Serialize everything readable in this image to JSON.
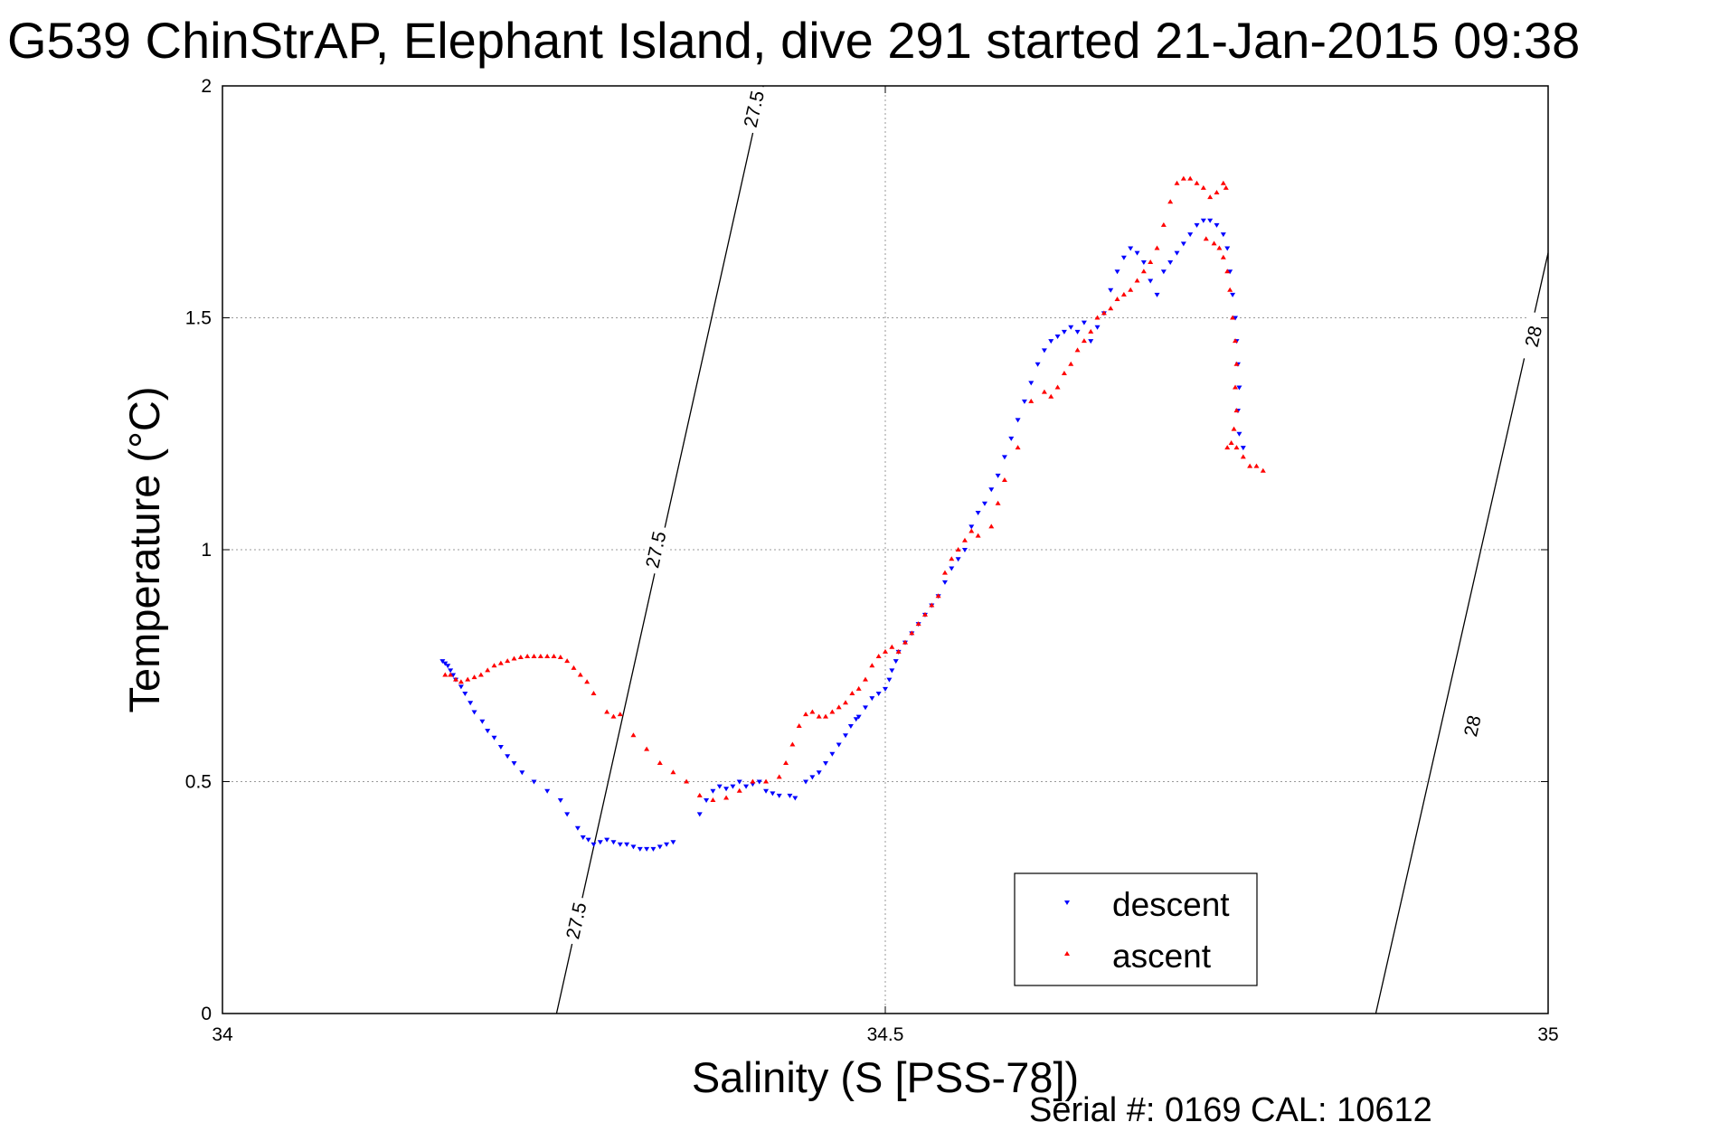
{
  "chart_data": {
    "type": "scatter",
    "title": "G539 ChinStrAP, Elephant Island, dive 291 started 21-Jan-2015 09:38",
    "xlabel": "Salinity (S [PSS-78])",
    "ylabel": "Temperature (°C)",
    "footer": "Serial #: 0169 CAL: 10612",
    "xlim": [
      34,
      35
    ],
    "ylim": [
      0,
      2
    ],
    "xticks": [
      34,
      34.5,
      35
    ],
    "xtick_labels": [
      "34",
      "34.5",
      "35"
    ],
    "yticks": [
      0,
      0.5,
      1,
      1.5,
      2
    ],
    "ytick_labels": [
      "0",
      "0.5",
      "1",
      "1.5",
      "2"
    ],
    "grid": true,
    "legend": {
      "position": "bottom-right",
      "entries": [
        "descent",
        "ascent"
      ]
    },
    "isopycnals": [
      {
        "label": "27.5",
        "points": [
          [
            34.252,
            0
          ],
          [
            34.408,
            2
          ]
        ],
        "label_positions": [
          [
            34.267,
            0.2
          ],
          [
            34.327,
            1.0
          ],
          [
            34.401,
            1.95
          ]
        ]
      },
      {
        "label": "28",
        "points": [
          [
            34.87,
            0
          ],
          [
            35.0,
            1.64
          ]
        ],
        "label_positions": [
          [
            34.943,
            0.62
          ],
          [
            34.989,
            1.46
          ]
        ]
      }
    ],
    "series": [
      {
        "name": "descent",
        "color": "#0000ff",
        "marker": "triangle-down",
        "points": [
          [
            34.166,
            0.76
          ],
          [
            34.168,
            0.755
          ],
          [
            34.17,
            0.75
          ],
          [
            34.172,
            0.74
          ],
          [
            34.174,
            0.73
          ],
          [
            34.176,
            0.72
          ],
          [
            34.18,
            0.705
          ],
          [
            34.183,
            0.69
          ],
          [
            34.187,
            0.67
          ],
          [
            34.19,
            0.65
          ],
          [
            34.196,
            0.63
          ],
          [
            34.2,
            0.61
          ],
          [
            34.205,
            0.595
          ],
          [
            34.21,
            0.575
          ],
          [
            34.215,
            0.555
          ],
          [
            34.22,
            0.54
          ],
          [
            34.226,
            0.52
          ],
          [
            34.235,
            0.5
          ],
          [
            34.245,
            0.48
          ],
          [
            34.255,
            0.46
          ],
          [
            34.26,
            0.43
          ],
          [
            34.268,
            0.4
          ],
          [
            34.272,
            0.38
          ],
          [
            34.276,
            0.375
          ],
          [
            34.28,
            0.365
          ],
          [
            34.285,
            0.37
          ],
          [
            34.29,
            0.375
          ],
          [
            34.295,
            0.37
          ],
          [
            34.3,
            0.365
          ],
          [
            34.305,
            0.365
          ],
          [
            34.31,
            0.36
          ],
          [
            34.315,
            0.355
          ],
          [
            34.32,
            0.355
          ],
          [
            34.325,
            0.355
          ],
          [
            34.33,
            0.36
          ],
          [
            34.335,
            0.365
          ],
          [
            34.34,
            0.37
          ],
          [
            34.36,
            0.43
          ],
          [
            34.365,
            0.46
          ],
          [
            34.37,
            0.48
          ],
          [
            34.375,
            0.49
          ],
          [
            34.38,
            0.485
          ],
          [
            34.385,
            0.49
          ],
          [
            34.39,
            0.5
          ],
          [
            34.395,
            0.49
          ],
          [
            34.4,
            0.495
          ],
          [
            34.405,
            0.5
          ],
          [
            34.41,
            0.48
          ],
          [
            34.415,
            0.475
          ],
          [
            34.42,
            0.47
          ],
          [
            34.428,
            0.47
          ],
          [
            34.432,
            0.465
          ],
          [
            34.44,
            0.5
          ],
          [
            34.445,
            0.51
          ],
          [
            34.45,
            0.52
          ],
          [
            34.455,
            0.54
          ],
          [
            34.46,
            0.56
          ],
          [
            34.465,
            0.58
          ],
          [
            34.47,
            0.6
          ],
          [
            34.474,
            0.62
          ],
          [
            34.478,
            0.635
          ],
          [
            34.48,
            0.64
          ],
          [
            34.485,
            0.66
          ],
          [
            34.49,
            0.68
          ],
          [
            34.495,
            0.69
          ],
          [
            34.5,
            0.7
          ],
          [
            34.503,
            0.72
          ],
          [
            34.505,
            0.74
          ],
          [
            34.508,
            0.76
          ],
          [
            34.51,
            0.78
          ],
          [
            34.515,
            0.8
          ],
          [
            34.52,
            0.82
          ],
          [
            34.525,
            0.84
          ],
          [
            34.53,
            0.86
          ],
          [
            34.535,
            0.88
          ],
          [
            34.54,
            0.9
          ],
          [
            34.545,
            0.93
          ],
          [
            34.55,
            0.96
          ],
          [
            34.555,
            0.98
          ],
          [
            34.56,
            1.0
          ],
          [
            34.565,
            1.05
          ],
          [
            34.57,
            1.08
          ],
          [
            34.575,
            1.1
          ],
          [
            34.58,
            1.13
          ],
          [
            34.585,
            1.16
          ],
          [
            34.59,
            1.2
          ],
          [
            34.595,
            1.24
          ],
          [
            34.6,
            1.28
          ],
          [
            34.605,
            1.32
          ],
          [
            34.61,
            1.36
          ],
          [
            34.615,
            1.4
          ],
          [
            34.62,
            1.43
          ],
          [
            34.625,
            1.45
          ],
          [
            34.63,
            1.46
          ],
          [
            34.635,
            1.47
          ],
          [
            34.64,
            1.48
          ],
          [
            34.645,
            1.47
          ],
          [
            34.65,
            1.49
          ],
          [
            34.655,
            1.45
          ],
          [
            34.66,
            1.48
          ],
          [
            34.665,
            1.51
          ],
          [
            34.67,
            1.56
          ],
          [
            34.675,
            1.6
          ],
          [
            34.68,
            1.63
          ],
          [
            34.685,
            1.65
          ],
          [
            34.69,
            1.64
          ],
          [
            34.695,
            1.62
          ],
          [
            34.7,
            1.58
          ],
          [
            34.705,
            1.55
          ],
          [
            34.71,
            1.6
          ],
          [
            34.715,
            1.62
          ],
          [
            34.72,
            1.64
          ],
          [
            34.725,
            1.66
          ],
          [
            34.73,
            1.68
          ],
          [
            34.735,
            1.7
          ],
          [
            34.74,
            1.71
          ],
          [
            34.745,
            1.71
          ],
          [
            34.75,
            1.7
          ],
          [
            34.755,
            1.68
          ],
          [
            34.758,
            1.65
          ],
          [
            34.76,
            1.6
          ],
          [
            34.762,
            1.55
          ],
          [
            34.764,
            1.5
          ],
          [
            34.765,
            1.45
          ],
          [
            34.766,
            1.4
          ],
          [
            34.767,
            1.35
          ],
          [
            34.766,
            1.3
          ],
          [
            34.767,
            1.25
          ],
          [
            34.77,
            1.22
          ]
        ]
      },
      {
        "name": "ascent",
        "color": "#ff0000",
        "marker": "triangle-up",
        "points": [
          [
            34.168,
            0.73
          ],
          [
            34.172,
            0.73
          ],
          [
            34.176,
            0.72
          ],
          [
            34.18,
            0.715
          ],
          [
            34.185,
            0.72
          ],
          [
            34.19,
            0.725
          ],
          [
            34.195,
            0.73
          ],
          [
            34.2,
            0.74
          ],
          [
            34.205,
            0.75
          ],
          [
            34.21,
            0.755
          ],
          [
            34.215,
            0.76
          ],
          [
            34.22,
            0.765
          ],
          [
            34.225,
            0.768
          ],
          [
            34.23,
            0.77
          ],
          [
            34.235,
            0.77
          ],
          [
            34.24,
            0.77
          ],
          [
            34.245,
            0.77
          ],
          [
            34.25,
            0.77
          ],
          [
            34.255,
            0.768
          ],
          [
            34.26,
            0.76
          ],
          [
            34.265,
            0.745
          ],
          [
            34.27,
            0.73
          ],
          [
            34.275,
            0.715
          ],
          [
            34.28,
            0.69
          ],
          [
            34.29,
            0.65
          ],
          [
            34.295,
            0.64
          ],
          [
            34.3,
            0.645
          ],
          [
            34.31,
            0.6
          ],
          [
            34.32,
            0.57
          ],
          [
            34.33,
            0.54
          ],
          [
            34.34,
            0.52
          ],
          [
            34.35,
            0.5
          ],
          [
            34.36,
            0.47
          ],
          [
            34.37,
            0.46
          ],
          [
            34.38,
            0.465
          ],
          [
            34.39,
            0.48
          ],
          [
            34.4,
            0.5
          ],
          [
            34.41,
            0.5
          ],
          [
            34.42,
            0.51
          ],
          [
            34.425,
            0.54
          ],
          [
            34.43,
            0.58
          ],
          [
            34.435,
            0.62
          ],
          [
            34.44,
            0.645
          ],
          [
            34.445,
            0.65
          ],
          [
            34.45,
            0.64
          ],
          [
            34.455,
            0.64
          ],
          [
            34.46,
            0.65
          ],
          [
            34.465,
            0.66
          ],
          [
            34.47,
            0.67
          ],
          [
            34.475,
            0.69
          ],
          [
            34.48,
            0.7
          ],
          [
            34.485,
            0.72
          ],
          [
            34.49,
            0.75
          ],
          [
            34.495,
            0.77
          ],
          [
            34.5,
            0.78
          ],
          [
            34.505,
            0.79
          ],
          [
            34.51,
            0.78
          ],
          [
            34.515,
            0.8
          ],
          [
            34.52,
            0.82
          ],
          [
            34.525,
            0.84
          ],
          [
            34.53,
            0.86
          ],
          [
            34.535,
            0.88
          ],
          [
            34.54,
            0.9
          ],
          [
            34.545,
            0.95
          ],
          [
            34.55,
            0.98
          ],
          [
            34.555,
            1.0
          ],
          [
            34.56,
            1.02
          ],
          [
            34.565,
            1.04
          ],
          [
            34.57,
            1.03
          ],
          [
            34.58,
            1.05
          ],
          [
            34.585,
            1.1
          ],
          [
            34.59,
            1.15
          ],
          [
            34.6,
            1.22
          ],
          [
            34.61,
            1.32
          ],
          [
            34.62,
            1.34
          ],
          [
            34.625,
            1.33
          ],
          [
            34.63,
            1.35
          ],
          [
            34.635,
            1.38
          ],
          [
            34.64,
            1.4
          ],
          [
            34.645,
            1.43
          ],
          [
            34.65,
            1.45
          ],
          [
            34.655,
            1.47
          ],
          [
            34.66,
            1.5
          ],
          [
            34.665,
            1.51
          ],
          [
            34.67,
            1.52
          ],
          [
            34.675,
            1.54
          ],
          [
            34.68,
            1.55
          ],
          [
            34.685,
            1.56
          ],
          [
            34.69,
            1.58
          ],
          [
            34.695,
            1.6
          ],
          [
            34.7,
            1.62
          ],
          [
            34.705,
            1.65
          ],
          [
            34.71,
            1.7
          ],
          [
            34.715,
            1.75
          ],
          [
            34.72,
            1.79
          ],
          [
            34.725,
            1.8
          ],
          [
            34.73,
            1.8
          ],
          [
            34.735,
            1.79
          ],
          [
            34.74,
            1.78
          ],
          [
            34.745,
            1.76
          ],
          [
            34.75,
            1.77
          ],
          [
            34.755,
            1.79
          ],
          [
            34.757,
            1.78
          ],
          [
            34.742,
            1.67
          ],
          [
            34.748,
            1.66
          ],
          [
            34.752,
            1.65
          ],
          [
            34.755,
            1.63
          ],
          [
            34.758,
            1.6
          ],
          [
            34.76,
            1.56
          ],
          [
            34.762,
            1.5
          ],
          [
            34.764,
            1.45
          ],
          [
            34.765,
            1.4
          ],
          [
            34.764,
            1.35
          ],
          [
            34.765,
            1.3
          ],
          [
            34.763,
            1.26
          ],
          [
            34.761,
            1.23
          ],
          [
            34.758,
            1.22
          ],
          [
            34.765,
            1.22
          ],
          [
            34.77,
            1.2
          ],
          [
            34.775,
            1.18
          ],
          [
            34.78,
            1.18
          ],
          [
            34.785,
            1.17
          ]
        ]
      }
    ]
  }
}
